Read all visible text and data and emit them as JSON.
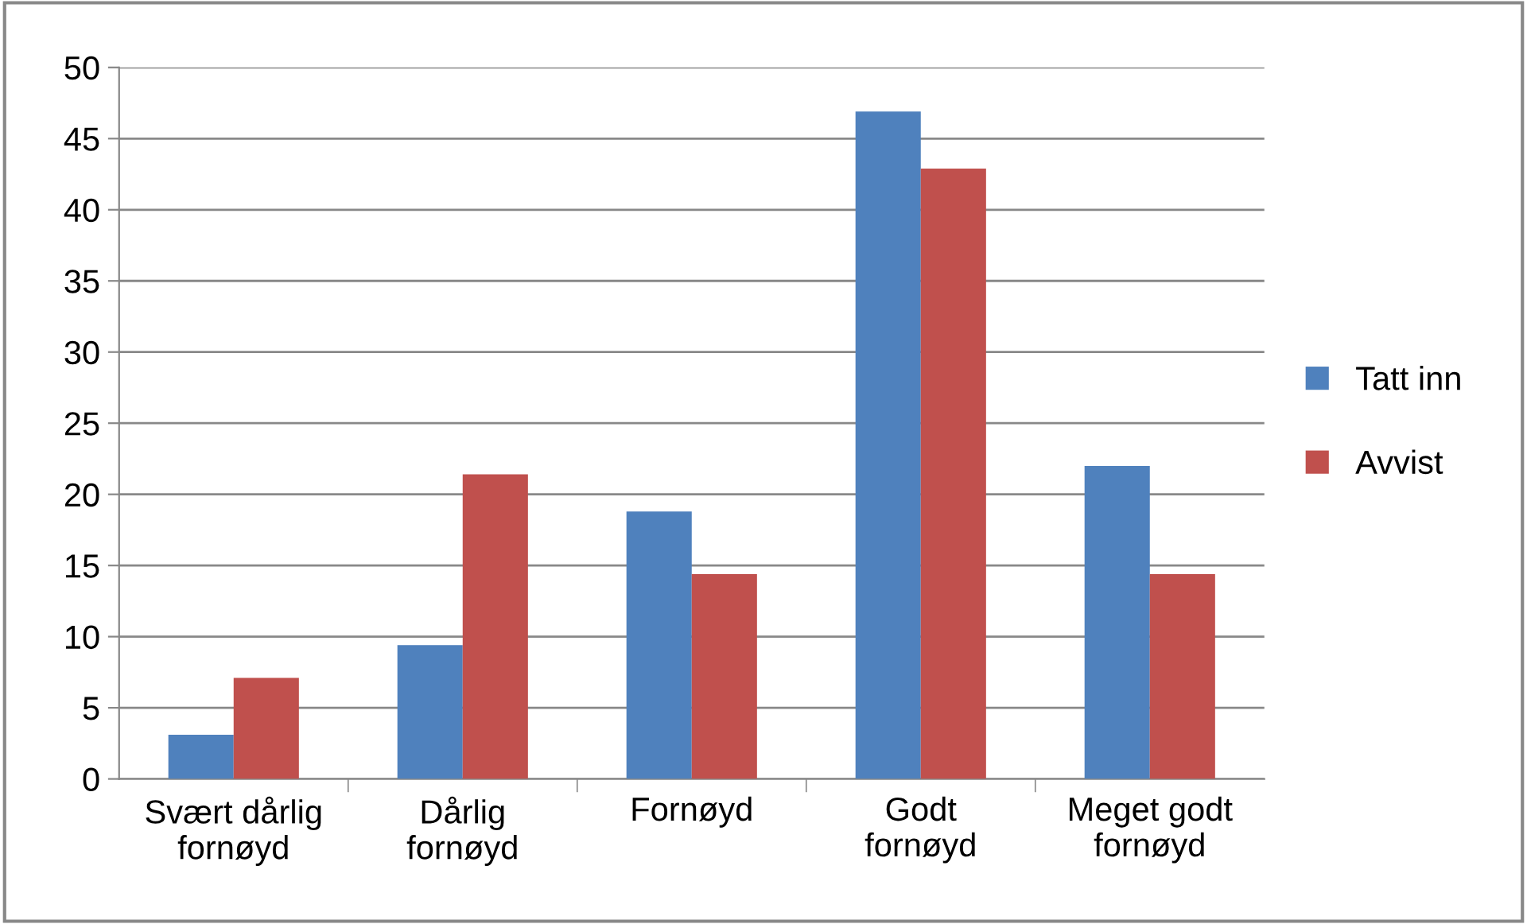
{
  "chart_data": {
    "type": "bar",
    "categories": [
      "Svært dårlig\nfornøyd",
      "Dårlig\nfornøyd",
      "Fornøyd",
      "Godt\nfornøyd",
      "Meget godt\nfornøyd"
    ],
    "series": [
      {
        "name": "Tatt inn",
        "color": "#4f81bd",
        "values": [
          3.1,
          9.4,
          18.8,
          46.9,
          22.0
        ]
      },
      {
        "name": "Avvist",
        "color": "#c0504d",
        "values": [
          7.1,
          21.4,
          14.4,
          42.9,
          14.4
        ]
      }
    ],
    "ylim": [
      0,
      50
    ],
    "yticks": [
      0,
      5,
      10,
      15,
      20,
      25,
      30,
      35,
      40,
      45,
      50
    ],
    "grid": "y",
    "legend": "right"
  }
}
